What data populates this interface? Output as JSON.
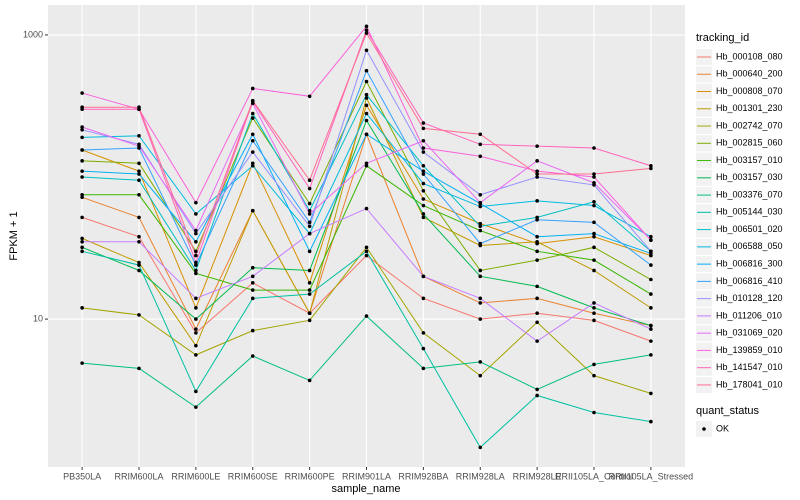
{
  "chart_data": {
    "type": "line",
    "log_y": true,
    "grid": true,
    "legend": "right",
    "points": true,
    "xlabel": "sample_name",
    "ylabel": "FPKM + 1",
    "legend_title": "tracking_id",
    "shape_legend": {
      "title": "quant_status",
      "labels": [
        "OK"
      ]
    },
    "categories": [
      "PB350LA",
      "RRIM600LA",
      "RRIM600LE",
      "RRIM600SE",
      "RRIM600PE",
      "RRIM901LA",
      "RRIM928BA",
      "RRIM928LA",
      "RRIM928LE",
      "RRII105LA_Control",
      "RRII105LA_Stressed"
    ],
    "ylim": [
      0.91,
      1625
    ],
    "yticks": [
      10,
      1000
    ],
    "series": [
      {
        "name": "Hb_000108_080",
        "color": "#F8766D",
        "values": [
          52,
          38,
          8,
          18,
          11,
          28,
          14,
          10,
          11,
          9.8,
          7
        ]
      },
      {
        "name": "Hb_000640_200",
        "color": "#EA8331",
        "values": [
          72,
          52,
          8.5,
          58,
          11,
          200,
          20,
          13,
          14,
          11,
          9
        ]
      },
      {
        "name": "Hb_000808_070",
        "color": "#D89000",
        "values": [
          155,
          110,
          12,
          125,
          18,
          320,
          70,
          47,
          34,
          38,
          28
        ]
      },
      {
        "name": "Hb_001301_230",
        "color": "#C09B00",
        "values": [
          37,
          25,
          6.5,
          58,
          11,
          360,
          52,
          33,
          35,
          22,
          12
        ]
      },
      {
        "name": "Hb_002742_070",
        "color": "#A3A500",
        "values": [
          12,
          10.7,
          5.6,
          8.3,
          9.8,
          32,
          8,
          4,
          9.5,
          4,
          3
        ]
      },
      {
        "name": "Hb_002815_060",
        "color": "#7CAE00",
        "values": [
          130,
          125,
          30,
          260,
          65,
          470,
          80,
          22,
          26,
          32,
          19
        ]
      },
      {
        "name": "Hb_003157_010",
        "color": "#39B600",
        "values": [
          75,
          75,
          21,
          16,
          16,
          120,
          63,
          42,
          30,
          26,
          15
        ]
      },
      {
        "name": "Hb_003157_030",
        "color": "#00BB4E",
        "values": [
          32,
          22,
          10,
          23,
          22,
          250,
          55,
          20,
          17,
          12,
          9
        ]
      },
      {
        "name": "Hb_003376_070",
        "color": "#00BF7D",
        "values": [
          4.9,
          4.5,
          2.4,
          5.5,
          3.7,
          10.5,
          4.5,
          5,
          3.2,
          4.8,
          5.6
        ]
      },
      {
        "name": "Hb_005144_030",
        "color": "#00C1A3",
        "values": [
          30,
          24,
          3.1,
          14,
          15,
          30,
          6.2,
          1.25,
          2.9,
          2.2,
          1.9
        ]
      },
      {
        "name": "Hb_006501_020",
        "color": "#00BFC4",
        "values": [
          100,
          95,
          22,
          280,
          58,
          380,
          120,
          45,
          52,
          67,
          30
        ]
      },
      {
        "name": "Hb_006588_050",
        "color": "#00BAE0",
        "values": [
          190,
          195,
          55,
          120,
          40,
          280,
          90,
          62,
          68,
          63,
          38
        ]
      },
      {
        "name": "Hb_006816_300",
        "color": "#00B0F6",
        "values": [
          110,
          105,
          35,
          200,
          30,
          200,
          110,
          65,
          38,
          40,
          29
        ]
      },
      {
        "name": "Hb_006816_410",
        "color": "#35A2FF",
        "values": [
          155,
          160,
          24,
          180,
          48,
          560,
          105,
          34,
          50,
          48,
          24
        ]
      },
      {
        "name": "Hb_010128_120",
        "color": "#9590FF",
        "values": [
          215,
          170,
          40,
          150,
          45,
          780,
          150,
          75,
          100,
          88,
          30
        ]
      },
      {
        "name": "Hb_011206_010",
        "color": "#C77CFF",
        "values": [
          35,
          35,
          14,
          20,
          40,
          60,
          20,
          14,
          7,
          13,
          8.5
        ]
      },
      {
        "name": "Hb_031069_020",
        "color": "#E76BF3",
        "values": [
          225,
          165,
          42,
          330,
          55,
          125,
          180,
          66,
          130,
          91,
          36
        ]
      },
      {
        "name": "Hb_139859_010",
        "color": "#FA62DB",
        "values": [
          390,
          300,
          66,
          420,
          370,
          1150,
          160,
          140,
          110,
          100,
          36
        ]
      },
      {
        "name": "Hb_141547_010",
        "color": "#FF62BC",
        "values": [
          300,
          300,
          25,
          340,
          83,
          1080,
          240,
          170,
          165,
          160,
          120
        ]
      },
      {
        "name": "Hb_178041_010",
        "color": "#FF6C91",
        "values": [
          310,
          310,
          28,
          345,
          95,
          1030,
          220,
          200,
          105,
          105,
          115
        ]
      }
    ]
  }
}
